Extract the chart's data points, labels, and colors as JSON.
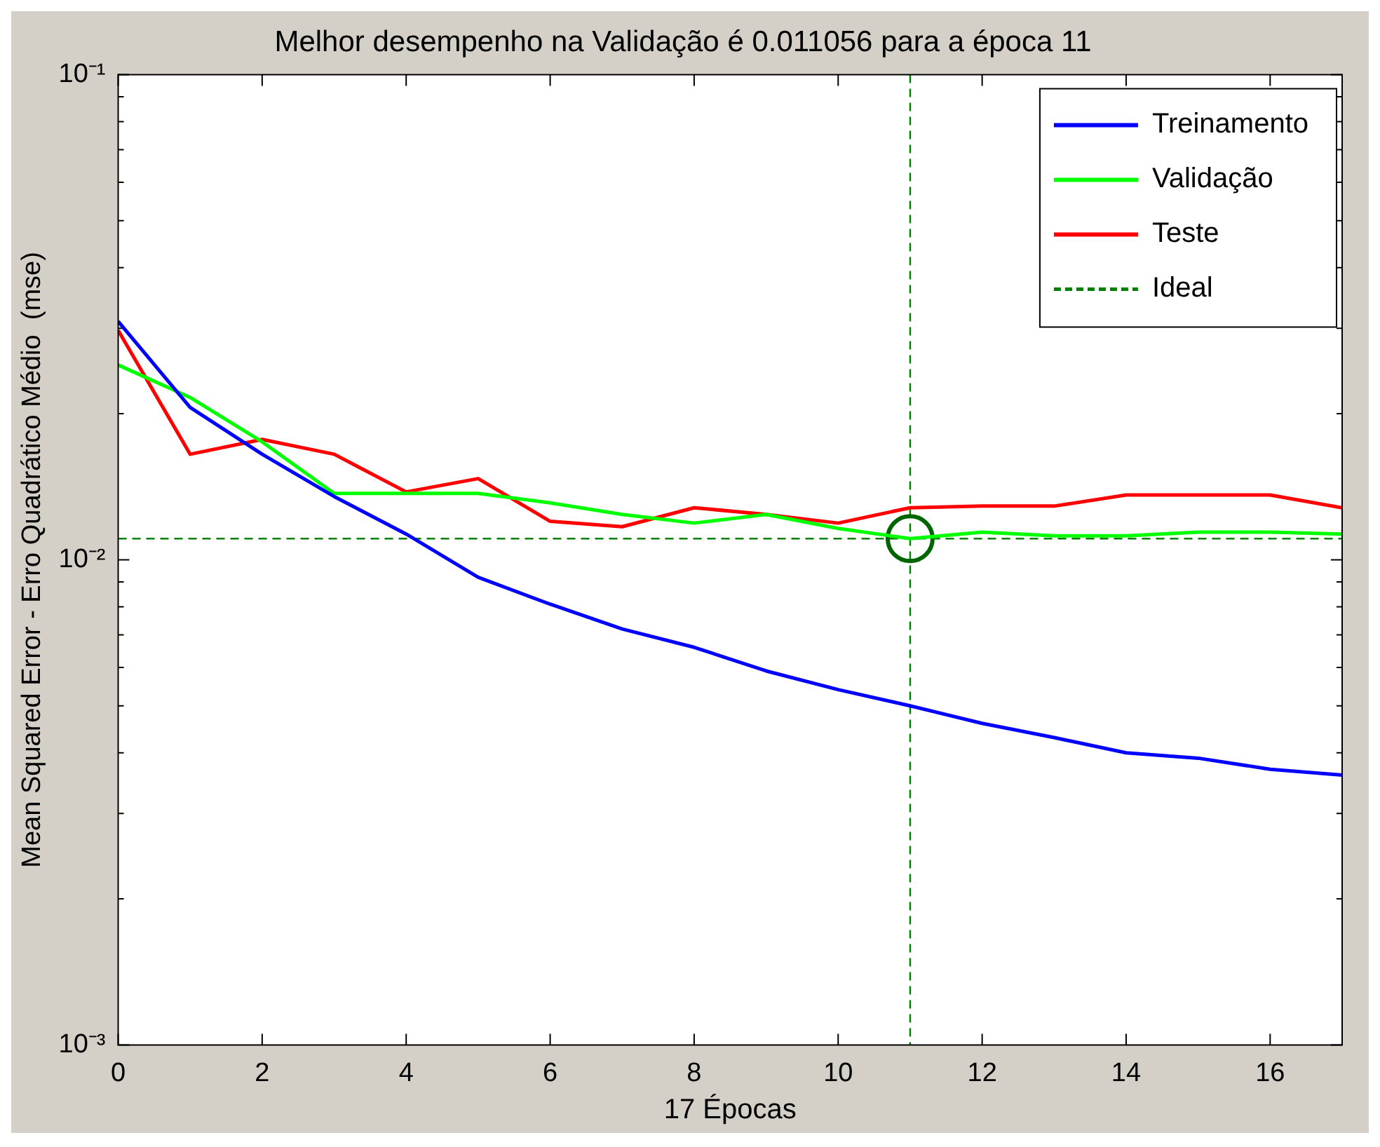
{
  "chart_data": {
    "type": "line",
    "title": "Melhor desempenho na Validação é 0.011056 para a época 11",
    "xlabel": "17 Épocas",
    "ylabel": "Mean Squared Error - Erro Quadrático Médio  (mse)",
    "x": [
      0,
      1,
      2,
      3,
      4,
      5,
      6,
      7,
      8,
      9,
      10,
      11,
      12,
      13,
      14,
      15,
      16,
      17
    ],
    "series": [
      {
        "name": "Treinamento",
        "color": "#0000ff",
        "values": [
          0.031,
          0.0206,
          0.0165,
          0.0135,
          0.0113,
          0.0092,
          0.0081,
          0.0072,
          0.0066,
          0.0059,
          0.0054,
          0.005,
          0.0046,
          0.0043,
          0.004,
          0.0039,
          0.0037,
          0.0036
        ]
      },
      {
        "name": "Validação",
        "color": "#00ff00",
        "values": [
          0.0252,
          0.0216,
          0.0175,
          0.0137,
          0.0137,
          0.0137,
          0.0131,
          0.0124,
          0.0119,
          0.0124,
          0.0116,
          0.011056,
          0.0114,
          0.0112,
          0.0112,
          0.0114,
          0.0114,
          0.0113
        ]
      },
      {
        "name": "Teste",
        "color": "#ff0000",
        "values": [
          0.0297,
          0.0165,
          0.0177,
          0.0165,
          0.0138,
          0.0147,
          0.012,
          0.0117,
          0.0128,
          0.0124,
          0.0119,
          0.0128,
          0.0129,
          0.0129,
          0.0136,
          0.0136,
          0.0136,
          0.0128
        ]
      },
      {
        "name": "Ideal",
        "color": "#008000",
        "line_style": "dashed",
        "x": [
          0,
          17
        ],
        "values": [
          0.011056,
          0.011056
        ]
      },
      {
        "type": "scatter",
        "color": "#006400",
        "marker": "circle",
        "x": [
          11
        ],
        "values": [
          0.011056
        ]
      }
    ],
    "ref_lines": [
      {
        "axis": "x",
        "value": 11,
        "color": "#008000",
        "line_style": "dashed"
      }
    ],
    "log": "y",
    "xlim": [
      0,
      17
    ],
    "xticks": [
      0,
      2,
      4,
      6,
      8,
      10,
      12,
      14,
      16
    ],
    "ylim": [
      0.001,
      0.1
    ],
    "yticks": [
      {
        "value": 0.001,
        "label": "10⁻³"
      },
      {
        "value": 0.002,
        "label": null
      },
      {
        "value": 0.003,
        "label": null
      },
      {
        "value": 0.004,
        "label": null
      },
      {
        "value": 0.005,
        "label": null
      },
      {
        "value": 0.006,
        "label": null
      },
      {
        "value": 0.007,
        "label": null
      },
      {
        "value": 0.008,
        "label": null
      },
      {
        "value": 0.009,
        "label": null
      },
      {
        "value": 0.01,
        "label": "10⁻²"
      },
      {
        "value": 0.02,
        "label": null
      },
      {
        "value": 0.03,
        "label": null
      },
      {
        "value": 0.04,
        "label": null
      },
      {
        "value": 0.05,
        "label": null
      },
      {
        "value": 0.06,
        "label": null
      },
      {
        "value": 0.07,
        "label": null
      },
      {
        "value": 0.08,
        "label": null
      },
      {
        "value": 0.09,
        "label": null
      },
      {
        "value": 0.1,
        "label": "10⁻¹"
      }
    ],
    "grid": false,
    "legend": "top right",
    "marker": "none",
    "line_style": "solid"
  }
}
